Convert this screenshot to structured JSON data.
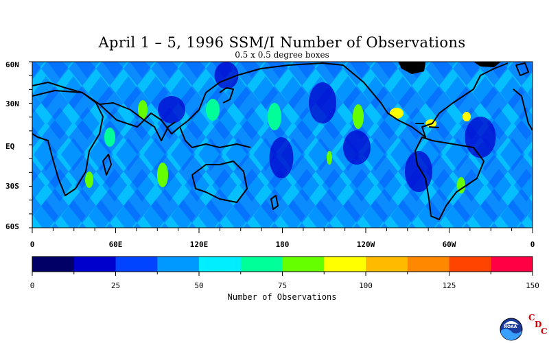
{
  "title": "April 1 – 5, 1996 SSM/I Number of Observations",
  "subtitle": "0.5 x 0.5 degree boxes",
  "lat_labels": [
    "60N",
    "30N",
    "EQ",
    "30S",
    "60S"
  ],
  "lon_labels": [
    "0",
    "60E",
    "120E",
    "180",
    "120W",
    "60W",
    "0"
  ],
  "colorbar": {
    "title": "Number of Observations",
    "tick_labels": [
      "0",
      "25",
      "50",
      "75",
      "100",
      "125",
      "150"
    ],
    "colors": [
      "#000066",
      "#0000cc",
      "#0044ff",
      "#0099ff",
      "#00eeff",
      "#00ff99",
      "#66ff00",
      "#ffff00",
      "#ffbb00",
      "#ff8800",
      "#ff4400",
      "#ff0044"
    ]
  },
  "logo": {
    "badge_text": "NOAA",
    "letters": [
      "C",
      "D",
      "C"
    ]
  },
  "map": {
    "lat_range": [
      -60,
      60
    ],
    "lon_range": [
      0,
      360
    ],
    "icon": "world-map-observation-field"
  }
}
